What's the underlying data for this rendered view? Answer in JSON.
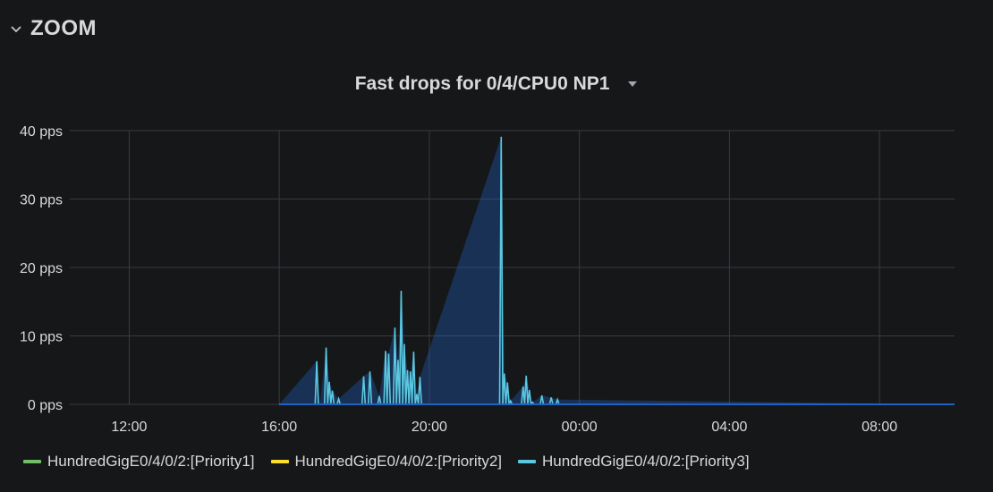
{
  "row": {
    "title": "ZOOM",
    "collapse_icon": "chevron-down-icon"
  },
  "panel": {
    "title": "Fast drops for 0/4/CPU0 NP1",
    "menu_icon": "caret-down-icon"
  },
  "colors": {
    "background": "#161719",
    "grid": "#3a3b3e",
    "text": "#d8d9da",
    "priority1": "#73bf69",
    "priority2": "#fade2a",
    "priority3": "#5ac8e0",
    "fill_low": "#1f60c4"
  },
  "chart_data": {
    "type": "line",
    "title": "Fast drops for 0/4/CPU0 NP1",
    "xlabel": "",
    "ylabel": "",
    "y_unit": "pps",
    "ylim": [
      0,
      40
    ],
    "y_ticks": [
      "0 pps",
      "10 pps",
      "20 pps",
      "30 pps",
      "40 pps"
    ],
    "x_ticks": [
      "12:00",
      "16:00",
      "20:00",
      "00:00",
      "04:00",
      "08:00"
    ],
    "grid": true,
    "legend_placement": "bottom",
    "series": [
      {
        "name": "HundredGigE0/4/0/2:[Priority1]",
        "color": "#73bf69",
        "x": [
          "16:00",
          "10:00"
        ],
        "values": [
          0,
          0
        ]
      },
      {
        "name": "HundredGigE0/4/0/2:[Priority2]",
        "color": "#fade2a",
        "x": [
          "16:00",
          "10:00"
        ],
        "values": [
          0,
          0
        ]
      },
      {
        "name": "HundredGigE0/4/0/2:[Priority3]",
        "color": "#5ac8e0",
        "x": [
          "16:00",
          "17:00",
          "17:05",
          "17:15",
          "17:20",
          "17:25",
          "17:35",
          "18:15",
          "18:25",
          "18:40",
          "18:50",
          "18:55",
          "19:05",
          "19:10",
          "19:15",
          "19:20",
          "19:25",
          "19:30",
          "19:35",
          "19:40",
          "19:45",
          "21:55",
          "22:00",
          "22:05",
          "22:10",
          "22:30",
          "22:35",
          "22:40",
          "22:45",
          "23:00",
          "23:15",
          "23:25",
          "10:00"
        ],
        "values": [
          0,
          6.3,
          0,
          8.3,
          3.3,
          2,
          0.8,
          4.1,
          4.8,
          1.2,
          7.8,
          7.4,
          11.2,
          6.5,
          16.6,
          8.8,
          5,
          4.8,
          7.7,
          1.5,
          4,
          39.1,
          4.5,
          3.2,
          0.5,
          2.6,
          4.2,
          2.1,
          0.3,
          1.3,
          1,
          0.7,
          0
        ]
      }
    ]
  }
}
